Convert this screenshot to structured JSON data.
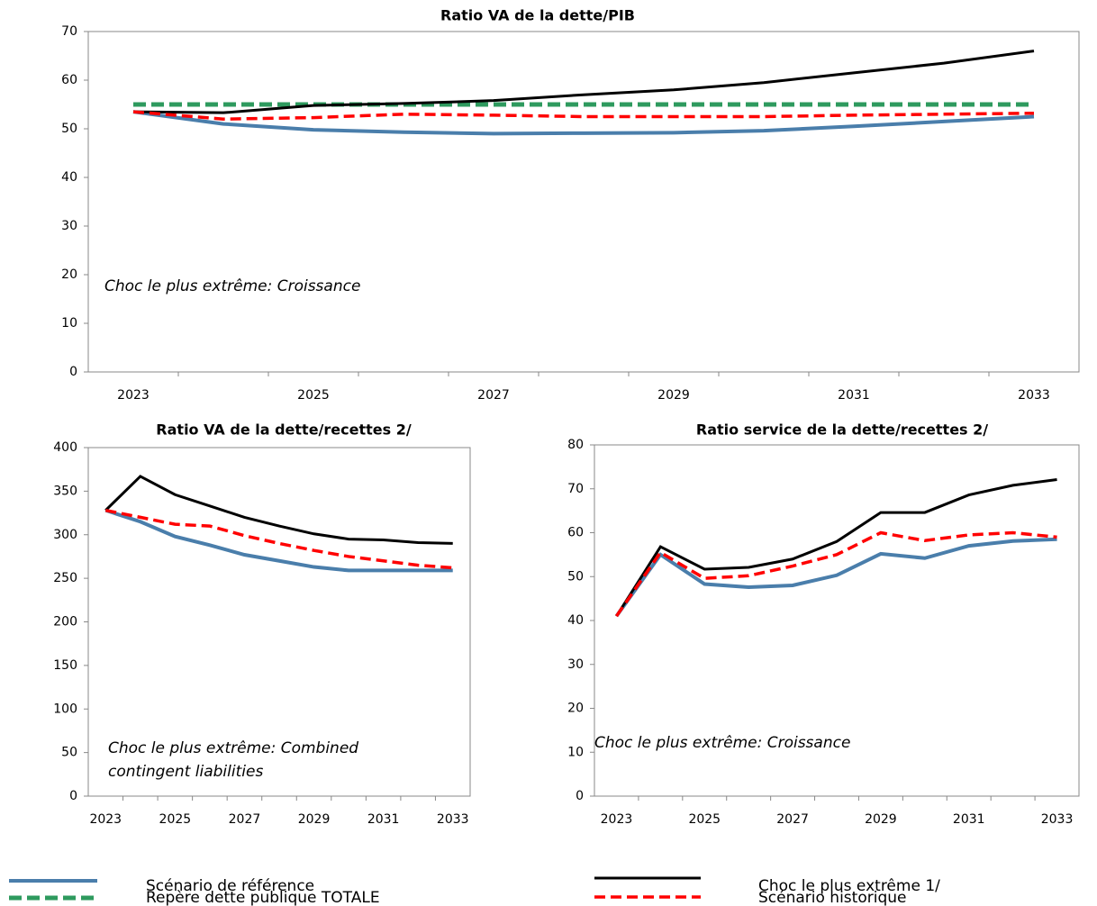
{
  "chart_data": [
    {
      "type": "line",
      "title": "Ratio VA de la dette/PIB",
      "categories": [
        "2023",
        null,
        "2025",
        null,
        "2027",
        null,
        "2029",
        null,
        "2031",
        null,
        "2033"
      ],
      "ylim": [
        0,
        70
      ],
      "yticks": [
        0,
        10,
        20,
        30,
        40,
        50,
        60,
        70
      ],
      "annotation": "Choc le plus extrême: Croissance",
      "series": [
        {
          "name": "Scénario de référence",
          "color": "#4a7eab",
          "style": "solid",
          "values": [
            53.5,
            51,
            49.8,
            49.3,
            49,
            49.1,
            49.2,
            49.6,
            50.5,
            51.5,
            52.5
          ]
        },
        {
          "name": "Repère dette publique TOTALE",
          "color": "#2e9a5e",
          "style": "dashed",
          "values": [
            55,
            55,
            55,
            55,
            55,
            55,
            55,
            55,
            55,
            55,
            55
          ]
        },
        {
          "name": "Choc le plus extrême 1/",
          "color": "#000000",
          "style": "solid",
          "values": [
            53.5,
            53.3,
            54.8,
            55.2,
            55.8,
            57,
            58,
            59.5,
            61.5,
            63.5,
            66
          ]
        },
        {
          "name": "Scénario historique",
          "color": "#ff0000",
          "style": "dashed",
          "values": [
            53.5,
            52,
            52.3,
            53,
            52.8,
            52.5,
            52.5,
            52.5,
            52.8,
            53,
            53.2
          ]
        }
      ]
    },
    {
      "type": "line",
      "title": "Ratio VA de la dette/recettes 2/",
      "categories": [
        "2023",
        null,
        "2025",
        null,
        "2027",
        null,
        "2029",
        null,
        "2031",
        null,
        "2033"
      ],
      "ylim": [
        0,
        400
      ],
      "yticks": [
        0,
        50,
        100,
        150,
        200,
        250,
        300,
        350,
        400
      ],
      "annotation": "Choc le plus extrême: Combined contingent liabilities",
      "series": [
        {
          "name": "Scénario de référence",
          "color": "#4a7eab",
          "style": "solid",
          "values": [
            328,
            315,
            298,
            288,
            277,
            270,
            263,
            259,
            259,
            259,
            259
          ]
        },
        {
          "name": "Choc le plus extrême 1/",
          "color": "#000000",
          "style": "solid",
          "values": [
            328,
            367,
            346,
            333,
            320,
            310,
            301,
            295,
            294,
            291,
            290
          ]
        },
        {
          "name": "Scénario historique",
          "color": "#ff0000",
          "style": "dashed",
          "values": [
            328,
            320,
            312,
            310,
            299,
            290,
            282,
            275,
            270,
            265,
            262
          ]
        }
      ]
    },
    {
      "type": "line",
      "title": "Ratio service de la dette/recettes 2/",
      "categories": [
        "2023",
        null,
        "2025",
        null,
        "2027",
        null,
        "2029",
        null,
        "2031",
        null,
        "2033"
      ],
      "ylim": [
        0,
        80
      ],
      "yticks": [
        0,
        10,
        20,
        30,
        40,
        50,
        60,
        70,
        80
      ],
      "annotation": "Choc le plus extrême: Croissance",
      "series": [
        {
          "name": "Scénario de référence",
          "color": "#4a7eab",
          "style": "solid",
          "values": [
            41,
            55,
            48.3,
            47.6,
            48,
            50.3,
            55.2,
            54.2,
            57,
            58.1,
            58.5
          ]
        },
        {
          "name": "Choc le plus extrême 1/",
          "color": "#000000",
          "style": "solid",
          "values": [
            41,
            56.8,
            51.7,
            52.1,
            54,
            58,
            64.6,
            64.6,
            68.6,
            70.8,
            72.1
          ]
        },
        {
          "name": "Scénario historique",
          "color": "#ff0000",
          "style": "dashed",
          "values": [
            41,
            55.5,
            49.6,
            50.2,
            52.4,
            55,
            60,
            58.2,
            59.5,
            60,
            59
          ]
        }
      ]
    }
  ]
}
